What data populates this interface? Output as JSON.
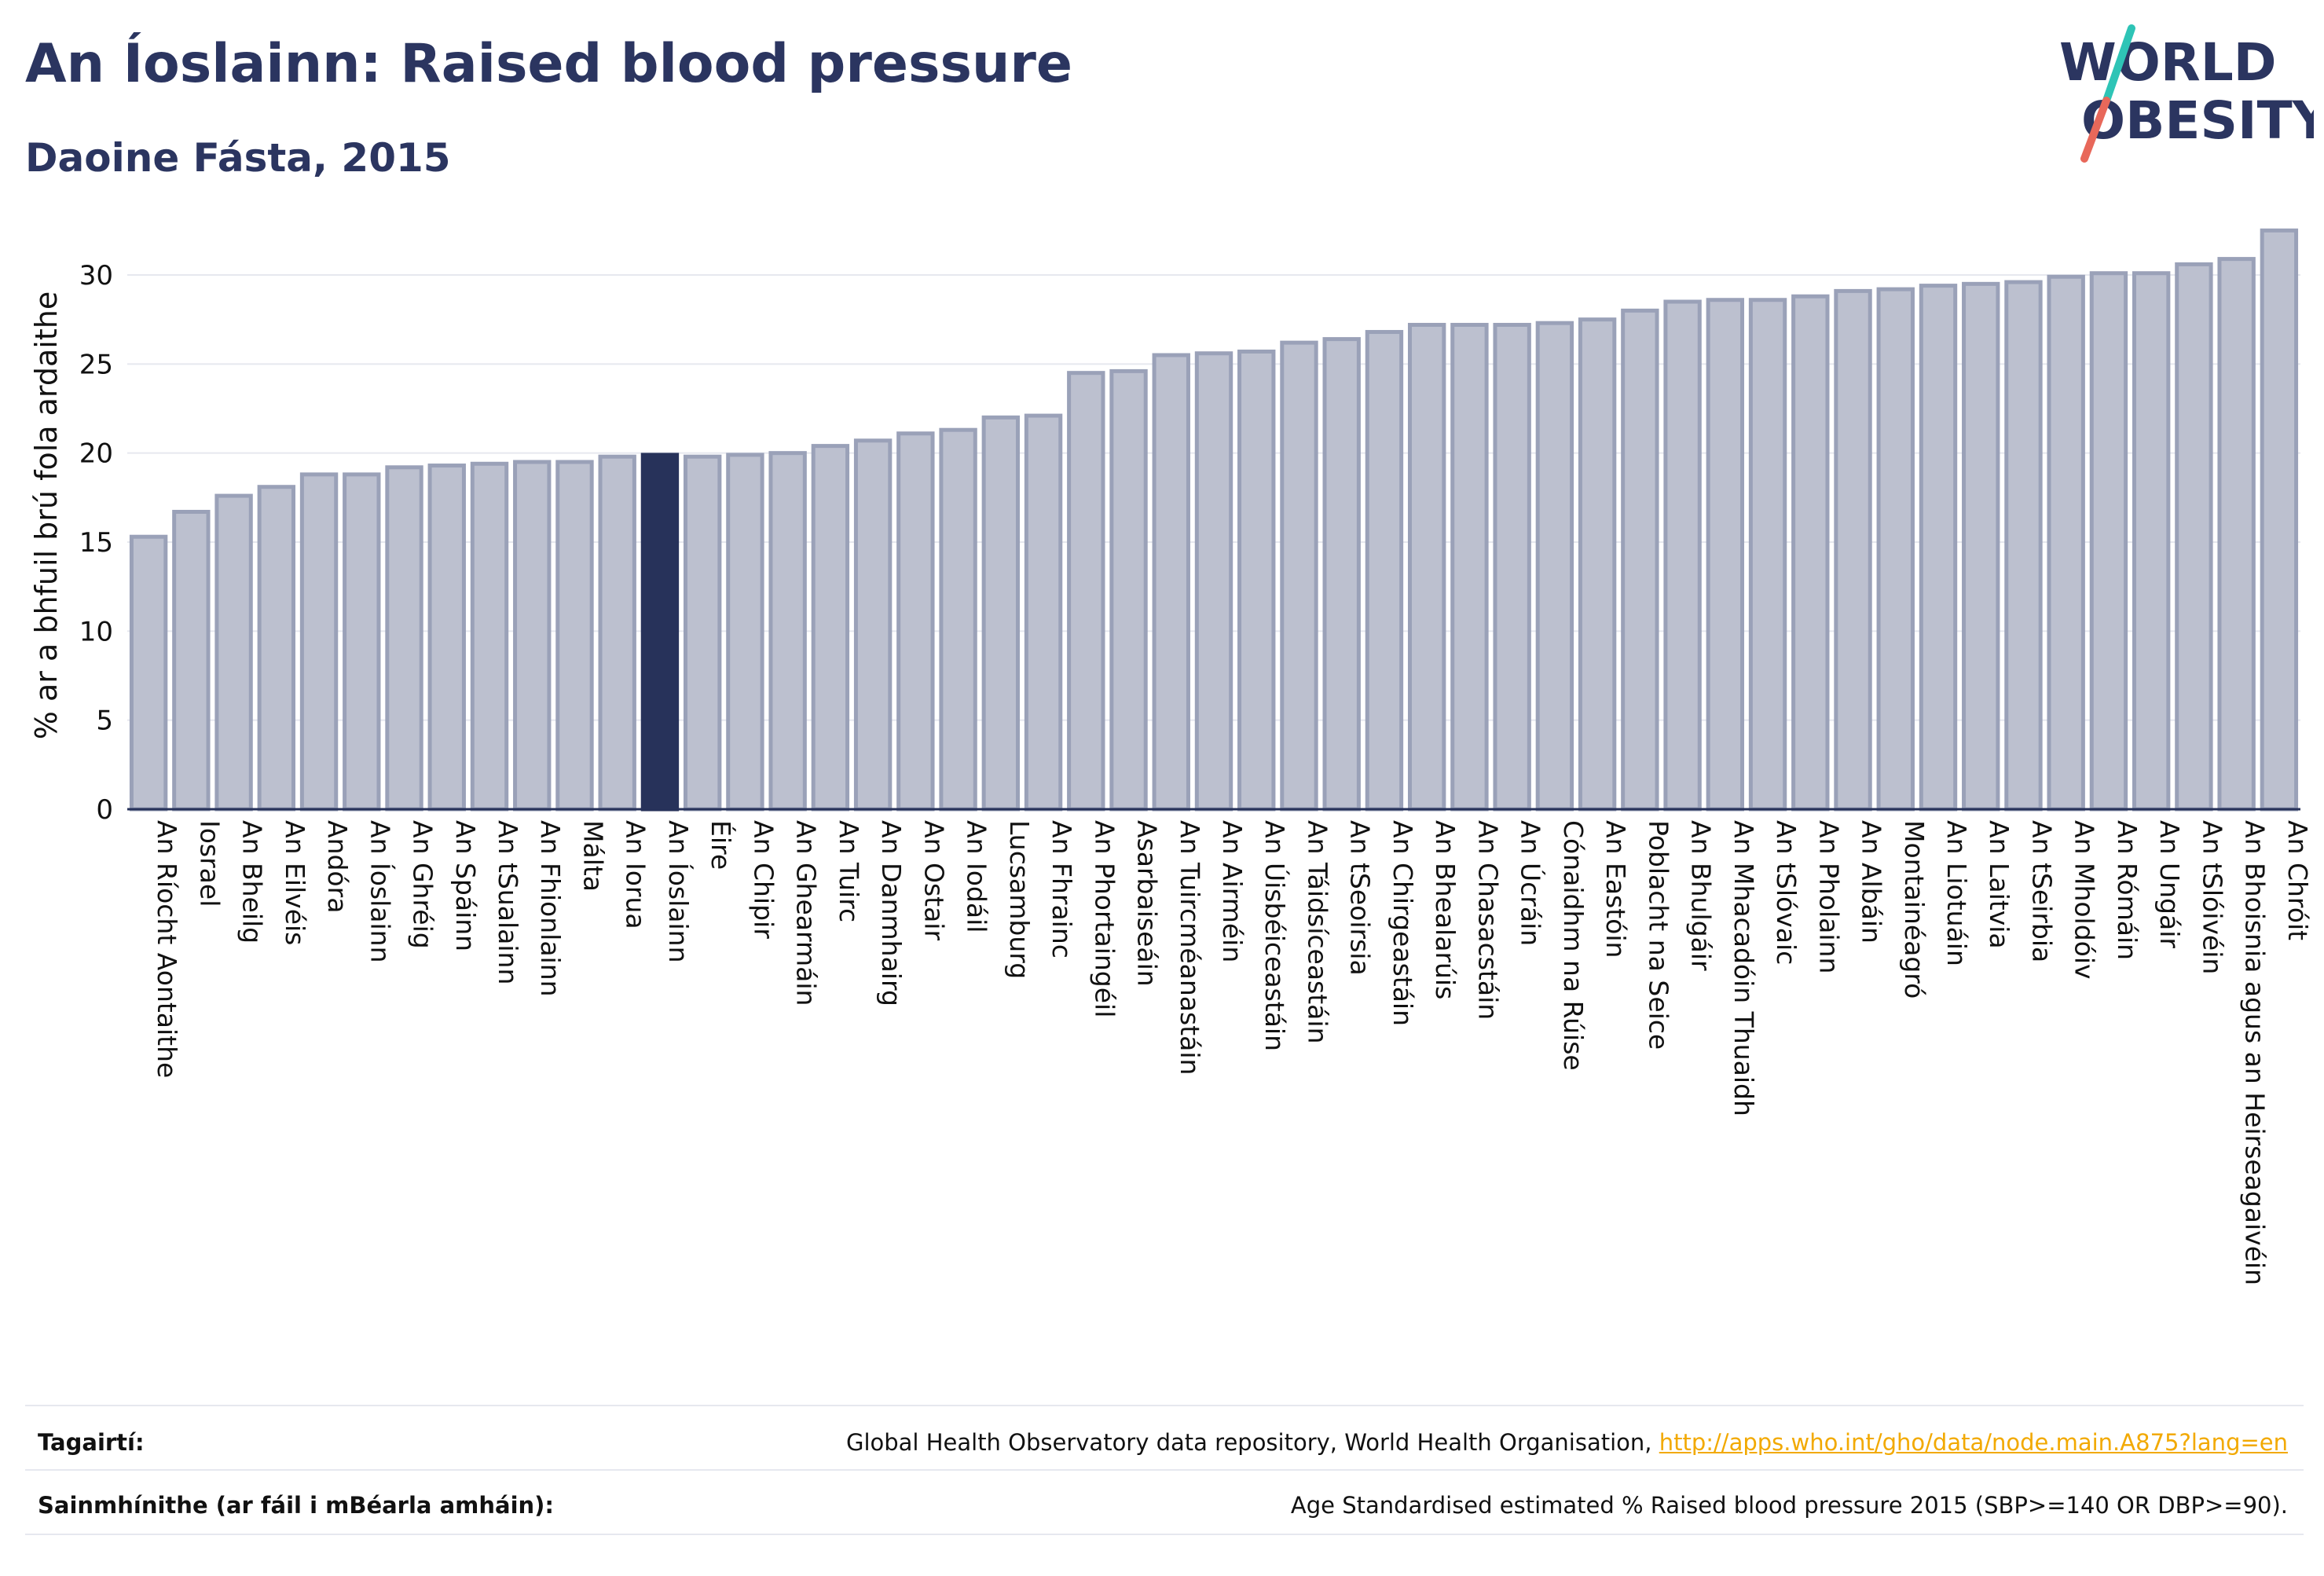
{
  "header": {
    "title": "An Íoslainn: Raised blood pressure",
    "subtitle": "Daoine Fásta, 2015"
  },
  "logo": {
    "line1": "WORLD",
    "line2": "OBESITY"
  },
  "colors": {
    "bar": "#bcc0cf",
    "bar_border": "#9aa1b8",
    "highlight": "#27325a",
    "grid": "#e6e8ef",
    "text": "#111111",
    "link": "#f2a900",
    "logo_teal": "#2ec4b6",
    "logo_red": "#e8685a"
  },
  "chart_data": {
    "type": "bar",
    "ylabel": "% ar a bhfuil brú fola ardaithe",
    "ylim": [
      0,
      33
    ],
    "yticks": [
      0,
      5,
      10,
      15,
      20,
      25,
      30
    ],
    "highlight": "An Íoslainn",
    "categories": [
      "An Ríocht Aontaithe",
      "Iosrael",
      "An Bheilg",
      "An Eilvéis",
      "Andóra",
      "An Íoslainn ",
      "An Ghréig",
      "An Spáinn",
      "An tSualainn",
      "An Fhionlainn",
      "Málta",
      "An Iorua",
      "An Íoslainn",
      "Éire",
      "An Chipir",
      "An Ghearmáin",
      "An Tuirc",
      "An Danmhairg",
      "An Ostair",
      "An Iodáil",
      "Lucsamburg",
      "An Fhrainc",
      "An Phortaingéil",
      "Asarbaiseáin",
      "An Tuircméanastáin",
      "An Airméin",
      "An Úisbéiceastáin",
      "An Táidsíceastáin",
      "An tSeoirsia",
      "An Chirgeastáin",
      "An Bhealarúis",
      "An Chasacstáin",
      "An Úcráin",
      "Cónaidhm na Rúise",
      "An Eastóin",
      "Poblacht na Seice",
      "An Bhulgáir",
      "An Mhacadóin Thuaidh",
      "An tSlóvaic",
      "An Pholainn",
      "An Albáin",
      "Montainéagró",
      "An Liotuáin",
      "An Laitvia",
      "An tSeirbia",
      "An Mholdóiv",
      "An Rómáin",
      "An Ungáir",
      "An tSlóivéin",
      "An Bhoisnia agus an Heirseagaivéin",
      "An Chróit"
    ],
    "values": [
      15.3,
      16.7,
      17.6,
      18.1,
      18.8,
      18.8,
      19.2,
      19.3,
      19.4,
      19.5,
      19.5,
      19.8,
      19.9,
      19.8,
      19.9,
      20.0,
      20.4,
      20.7,
      21.1,
      21.3,
      22.0,
      22.1,
      24.5,
      24.6,
      25.5,
      25.6,
      25.7,
      26.2,
      26.4,
      26.8,
      27.2,
      27.2,
      27.2,
      27.3,
      27.5,
      28.0,
      28.5,
      28.6,
      28.6,
      28.8,
      29.1,
      29.2,
      29.4,
      29.5,
      29.6,
      29.9,
      30.1,
      30.1,
      30.6,
      30.9,
      32.5
    ]
  },
  "footer": {
    "ref_label": "Tagairtí:",
    "ref_text": "Global Health Observatory data repository, World Health Organisation, ",
    "ref_link": "http://apps.who.int/gho/data/node.main.A875?lang=en",
    "def_label": "Sainmhínithe (ar fáil i mBéarla amháin):",
    "def_text": "Age Standardised estimated % Raised blood pressure 2015 (SBP>=140 OR DBP>=90)."
  }
}
